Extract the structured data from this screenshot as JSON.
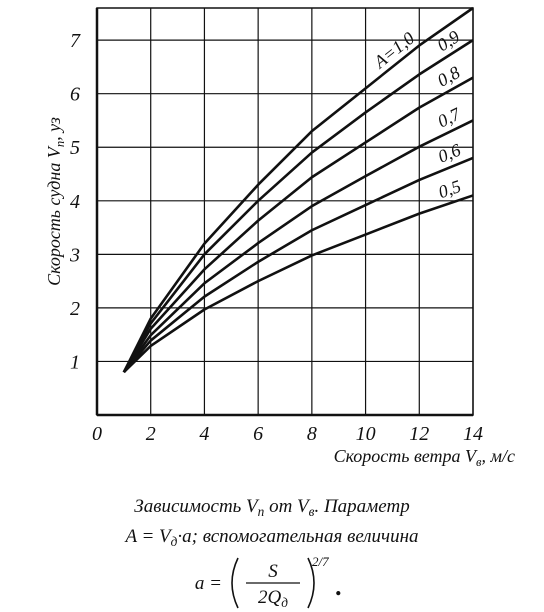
{
  "chart_data": {
    "type": "line",
    "x": [
      1,
      2,
      4,
      6,
      8,
      10,
      12,
      14
    ],
    "series": [
      {
        "name": "A=1,0",
        "color": "#111111",
        "values": [
          0.8,
          1.8,
          3.2,
          4.3,
          5.3,
          6.1,
          6.9,
          7.6
        ]
      },
      {
        "name": "0,9",
        "color": "#111111",
        "values": [
          0.8,
          1.71,
          3.0,
          4.0,
          4.9,
          5.65,
          6.36,
          7.0
        ]
      },
      {
        "name": "0,8",
        "color": "#111111",
        "values": [
          0.8,
          1.61,
          2.72,
          3.63,
          4.44,
          5.09,
          5.74,
          6.3
        ]
      },
      {
        "name": "0,7",
        "color": "#111111",
        "values": [
          0.8,
          1.49,
          2.46,
          3.21,
          3.9,
          4.46,
          5.01,
          5.5
        ]
      },
      {
        "name": "0,6",
        "color": "#111111",
        "values": [
          0.8,
          1.39,
          2.21,
          2.86,
          3.45,
          3.92,
          4.39,
          4.8
        ]
      },
      {
        "name": "0,5",
        "color": "#111111",
        "values": [
          0.8,
          1.29,
          1.97,
          2.5,
          2.98,
          3.37,
          3.76,
          4.1
        ]
      }
    ],
    "xlim": [
      0,
      14
    ],
    "ylim": [
      0,
      7.6
    ],
    "xticks": [
      0,
      2,
      4,
      6,
      8,
      10,
      12,
      14
    ],
    "yticks": [
      1,
      2,
      3,
      4,
      5,
      6,
      7
    ],
    "grid": true,
    "x_label": [
      {
        "text": "Скорость ветра  V"
      },
      {
        "text": "в",
        "sub": true
      },
      {
        "text": ", м/с"
      }
    ],
    "y_label": [
      {
        "text": "Скорость судна  V"
      },
      {
        "text": "п",
        "sub": true
      },
      {
        "text": ", уз"
      }
    ]
  },
  "caption": {
    "lines": [
      [
        {
          "text": "Зависимость  V"
        },
        {
          "text": "п",
          "sub": true
        },
        {
          "text": "  от  V"
        },
        {
          "text": "в",
          "sub": true
        },
        {
          "text": ".  Параметр"
        }
      ],
      [
        {
          "text": "A = V"
        },
        {
          "text": "д",
          "sub": true
        },
        {
          "text": "·a; вспомогательная величина"
        }
      ]
    ],
    "formula": {
      "lhs": "a =",
      "numerator": "S",
      "denominator": "2Q",
      "denominator_sub": "д",
      "exponent": "2/7",
      "end": "."
    }
  }
}
